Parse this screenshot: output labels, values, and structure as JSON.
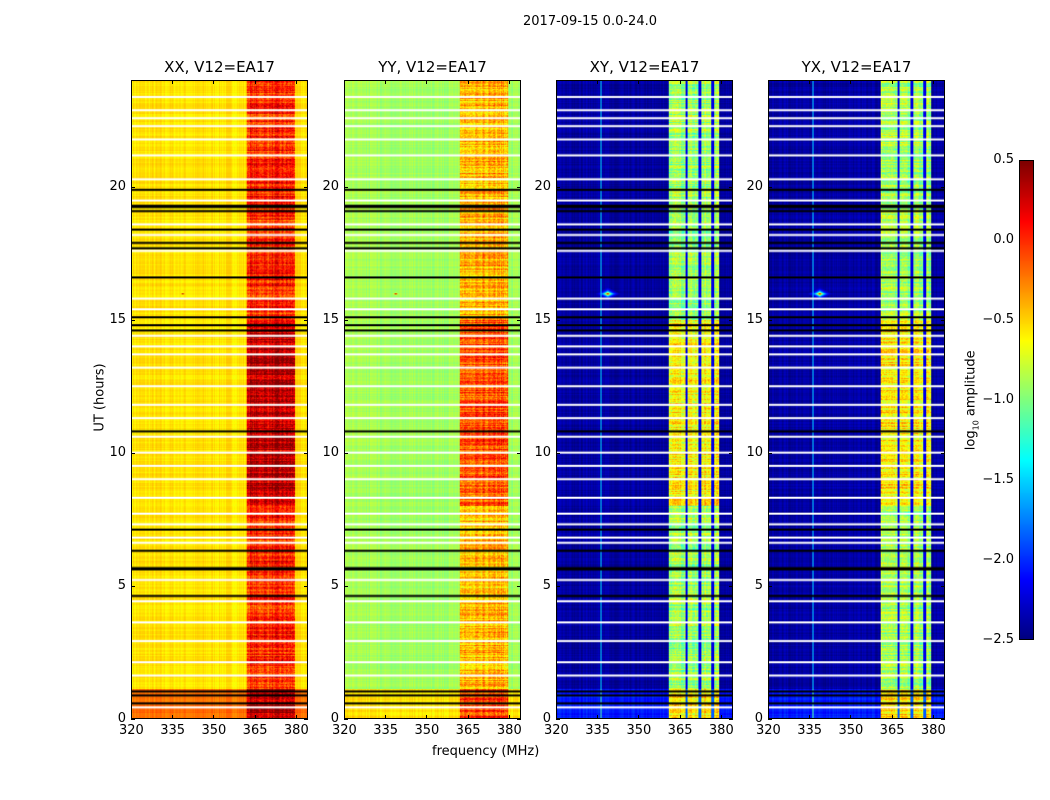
{
  "figure_title": "2017-09-15 0.0-24.0",
  "chart_data": {
    "type": "heatmap",
    "title": "2017-09-15 0.0-24.0",
    "xlabel": "frequency (MHz)",
    "ylabel": "UT (hours)",
    "xlim": [
      320,
      384.4
    ],
    "ylim": [
      0,
      24
    ],
    "xticks": [
      320,
      335,
      350,
      365,
      380
    ],
    "yticks": [
      0,
      5,
      10,
      15,
      20
    ],
    "panels": [
      {
        "title": "XX, V12=EA17",
        "base": -0.55,
        "band": 0.0,
        "band_range": [
          362,
          380
        ],
        "strip_gaps": false
      },
      {
        "title": "YY, V12=EA17",
        "base": -0.9,
        "band": -0.4,
        "band_range": [
          362,
          380
        ],
        "strip_gaps": false
      },
      {
        "title": "XY, V12=EA17",
        "base": -2.4,
        "band": -0.9,
        "band_range": [
          361,
          379.5
        ],
        "strip_gaps": true
      },
      {
        "title": "YX, V12=EA17",
        "base": -2.4,
        "band": -0.9,
        "band_range": [
          361,
          379.5
        ],
        "strip_gaps": true
      }
    ],
    "rfi": {
      "freq_mhz": 338.5,
      "ut_hours": 16.0,
      "level": 0.5
    },
    "flagged_white_hours": [
      23.4,
      22.9,
      22.6,
      22.3,
      21.8,
      21.2,
      20.3,
      19.5,
      18.6,
      18.2,
      17.6,
      15.8,
      15.4,
      14.4,
      14.0,
      13.7,
      13.2,
      12.5,
      11.8,
      11.3,
      10.6,
      10.0,
      9.5,
      9.0,
      8.3,
      7.7,
      7.3,
      6.8,
      6.6,
      5.2,
      4.4,
      3.6,
      2.9,
      2.1,
      1.6,
      0.4
    ],
    "flagged_black_hours": [
      19.9,
      19.3,
      19.25,
      19.1,
      18.4,
      17.9,
      17.7,
      16.6,
      15.1,
      14.8,
      14.6,
      10.8,
      7.1,
      6.3,
      5.65,
      5.6,
      4.6,
      1.0,
      0.85,
      0.55
    ],
    "colorbar": {
      "label": "log10 amplitude",
      "range": [
        -2.5,
        0.5
      ],
      "ticks": [
        "0.5",
        "0.0",
        "−0.5",
        "−1.0",
        "−1.5",
        "−2.0",
        "−2.5"
      ],
      "colormap": "jet"
    }
  }
}
